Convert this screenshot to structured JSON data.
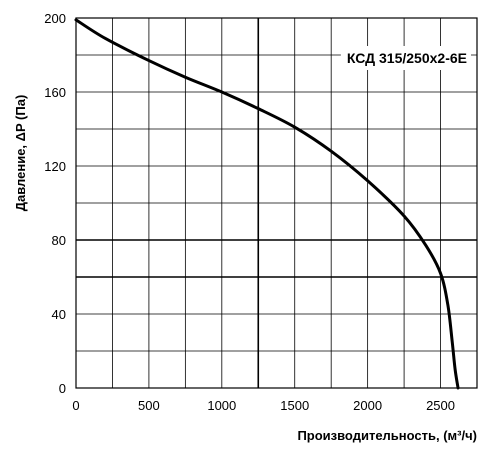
{
  "chart_data": {
    "type": "line",
    "xlabel": "Производительность, (м³/ч)",
    "ylabel": "Давление, ΔP (Па)",
    "legend": "КСД 315/250x2-6E",
    "xlim": [
      0,
      2750
    ],
    "ylim": [
      0,
      200
    ],
    "x_ticks": [
      0,
      500,
      1000,
      1500,
      2000,
      2500
    ],
    "y_ticks": [
      0,
      40,
      80,
      120,
      160,
      200
    ],
    "grid": true,
    "legend_position": "top-right",
    "series": [
      {
        "x": [
          0,
          200,
          500,
          750,
          1000,
          1250,
          1500,
          1750,
          2000,
          2250,
          2400,
          2500,
          2550,
          2580,
          2600,
          2620
        ],
        "y": [
          199,
          189,
          177,
          168,
          160,
          151,
          141,
          128,
          112,
          93,
          77,
          62,
          45,
          25,
          10,
          0
        ]
      }
    ],
    "thick_gridlines": {
      "x": [
        1250
      ],
      "y": [
        60,
        80
      ]
    }
  }
}
